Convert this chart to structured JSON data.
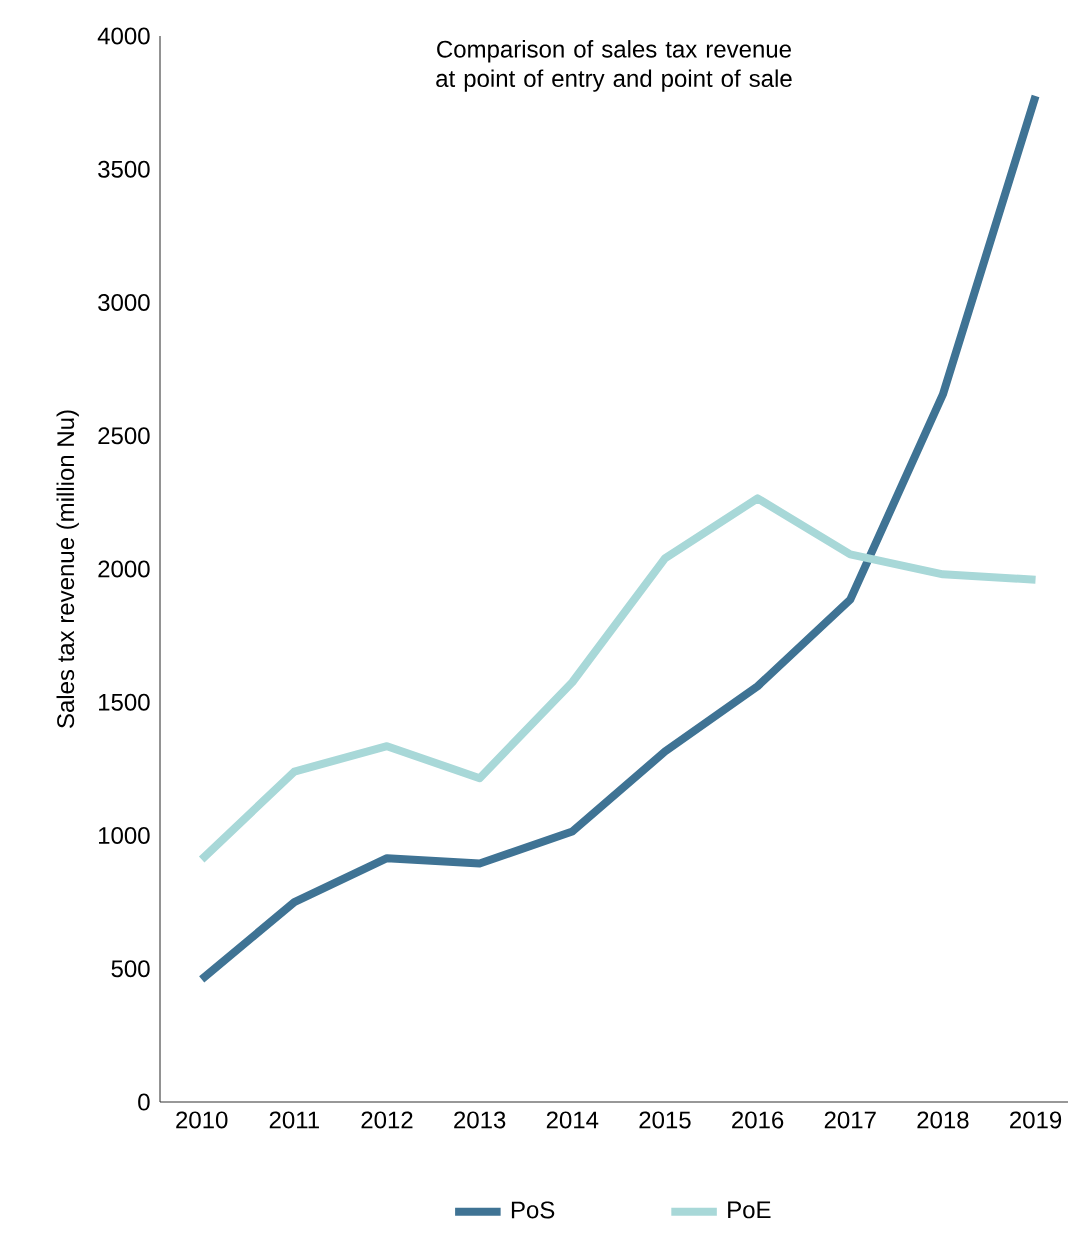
{
  "chart_data": {
    "type": "line",
    "title": "Comparison of sales tax revenue at point of entry and point of sale",
    "ylabel": "Sales tax revenue (million Nu)",
    "x": [
      2010,
      2011,
      2012,
      2013,
      2014,
      2015,
      2016,
      2017,
      2018,
      2019
    ],
    "xlim": [
      2009.55,
      2019.35
    ],
    "xticks": [
      2010,
      2011,
      2012,
      2013,
      2014,
      2015,
      2016,
      2017,
      2018,
      2019
    ],
    "ylim": [
      0,
      4000
    ],
    "yticks": [
      0,
      500,
      1000,
      1500,
      2000,
      2500,
      3000,
      3500,
      4000
    ],
    "grid": false,
    "legend": "bottom",
    "marker": "none",
    "line_style": "solid",
    "series": [
      {
        "name": "PoS",
        "color": "#3f7394",
        "values": [
          460,
          750,
          915,
          895,
          1015,
          1315,
          1560,
          1885,
          2655,
          3775
        ]
      },
      {
        "name": "PoE",
        "color": "#a8d8d8",
        "values": [
          910,
          1240,
          1335,
          1215,
          1575,
          2040,
          2265,
          2055,
          1980,
          1960
        ]
      }
    ]
  }
}
